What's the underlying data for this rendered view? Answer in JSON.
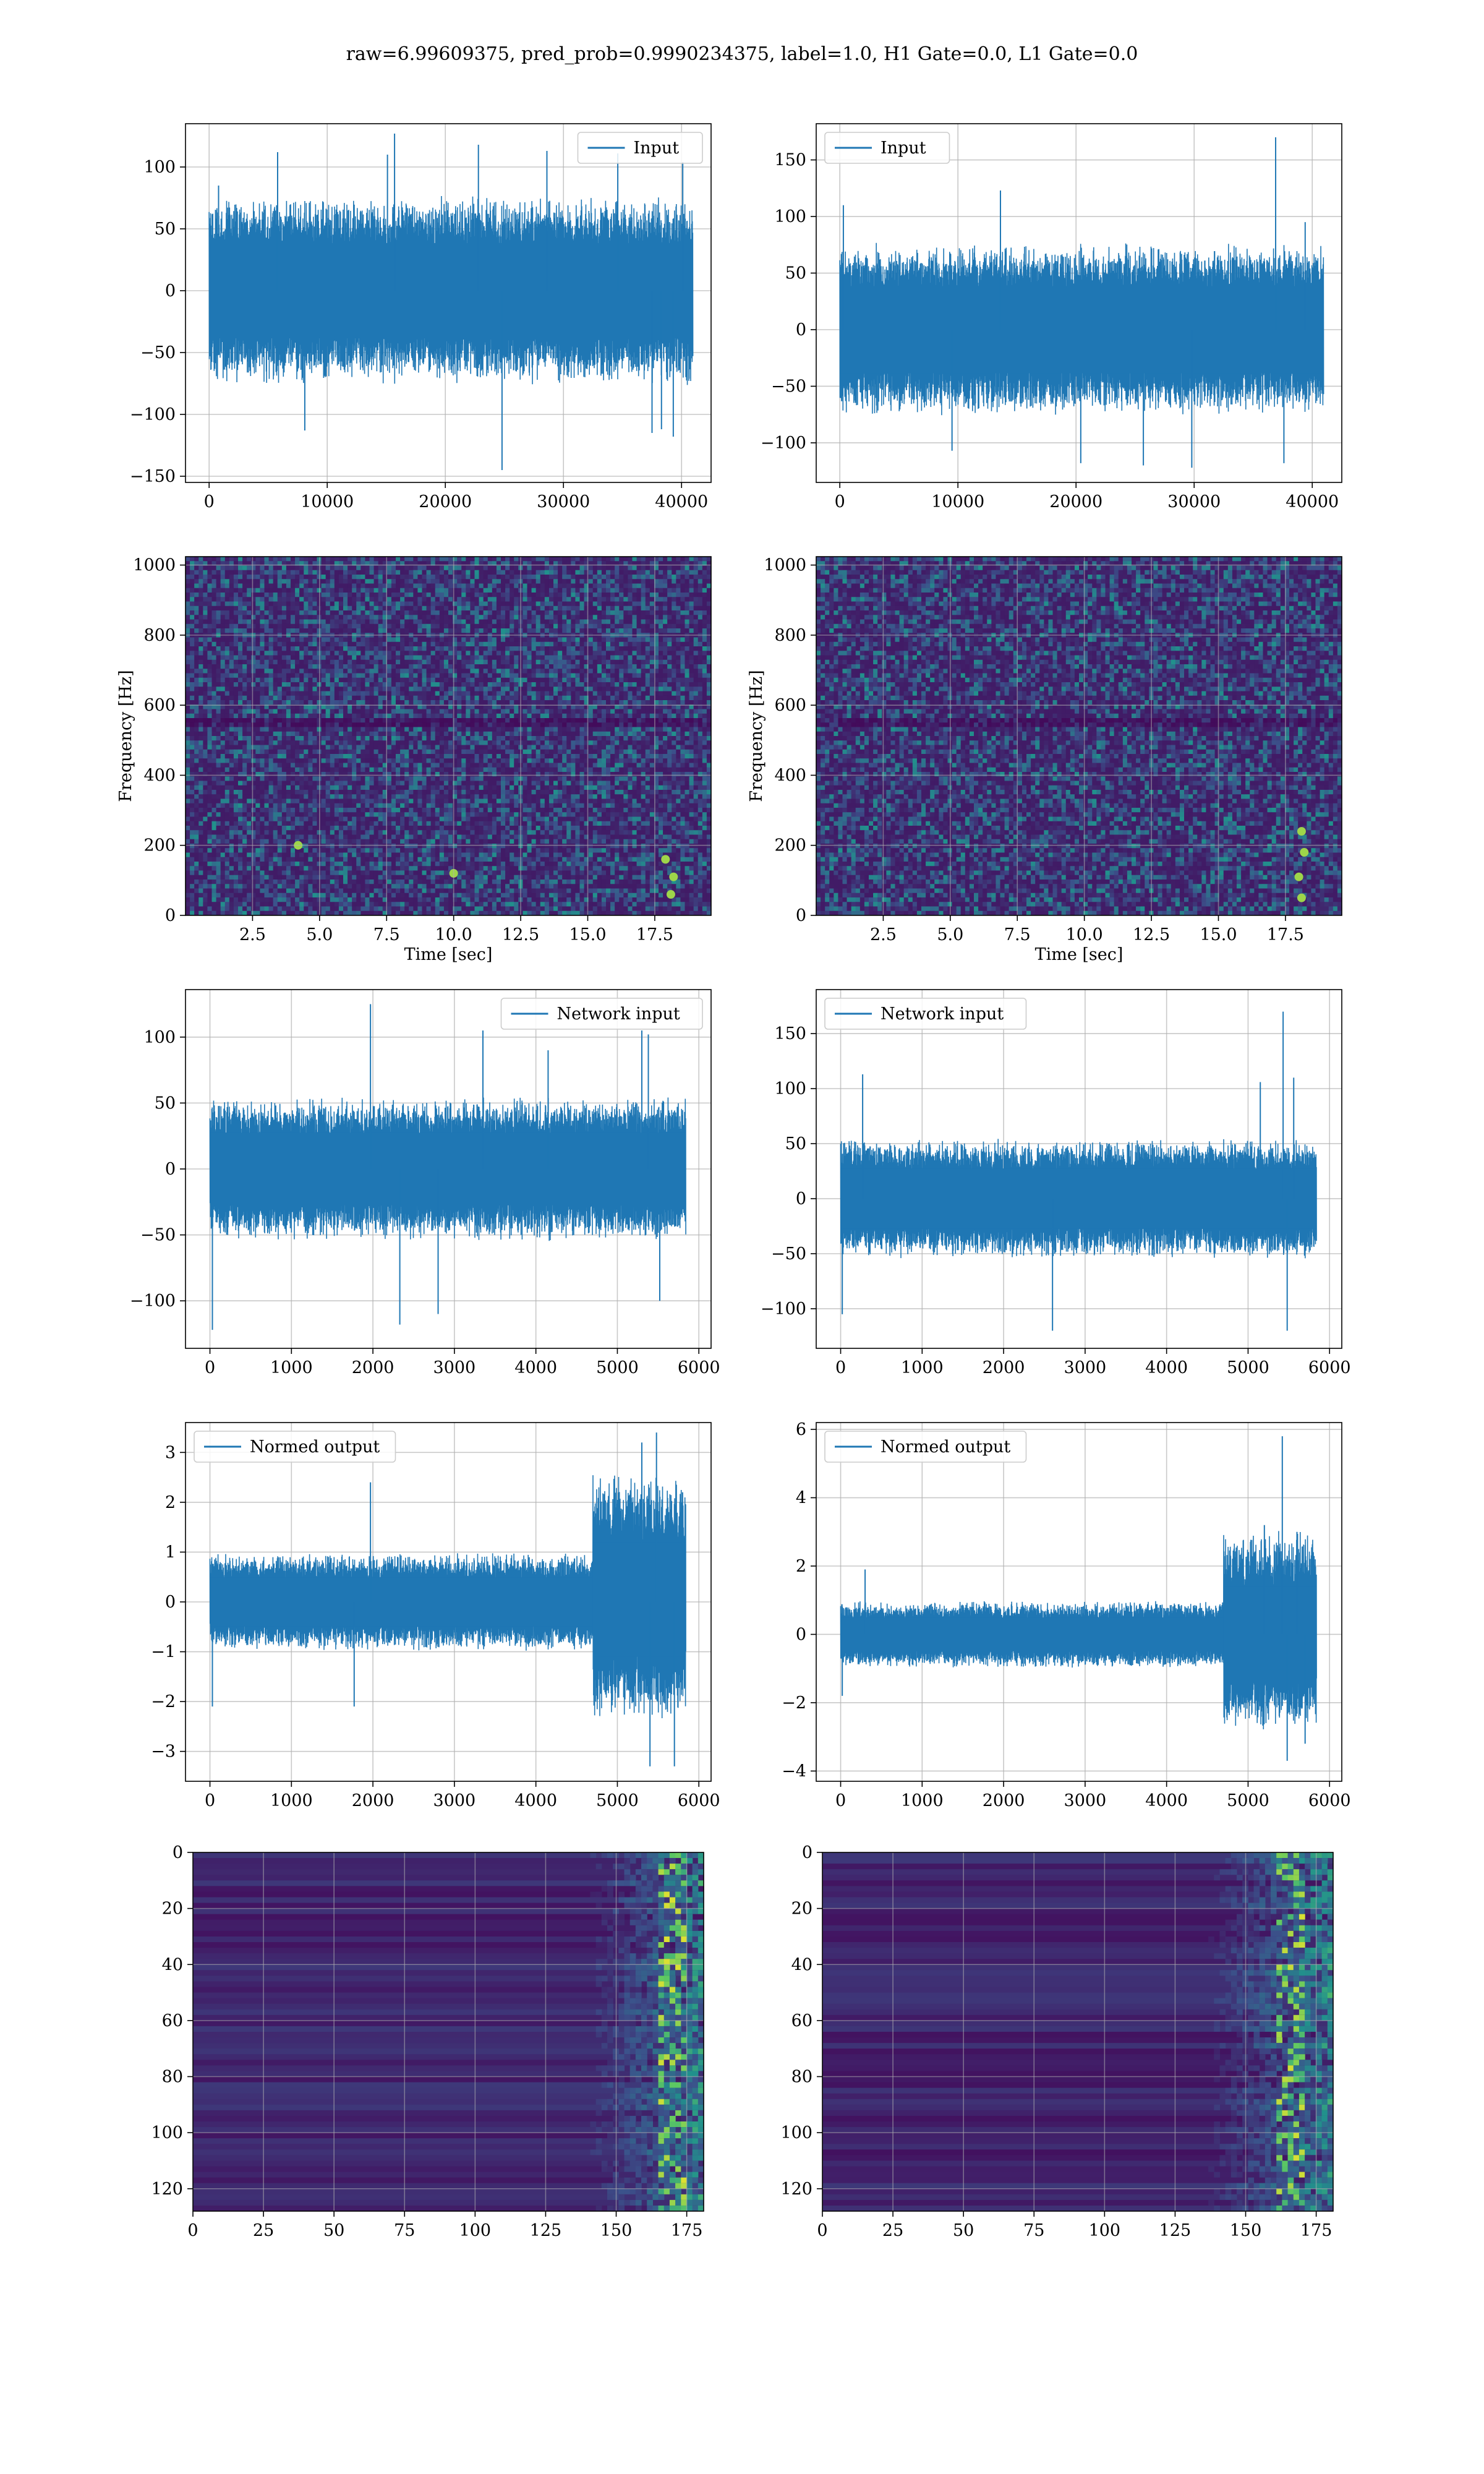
{
  "figure": {
    "title": "raw=6.99609375, pred_prob=0.9990234375, label=1.0, H1 Gate=0.0, L1 Gate=0.0"
  },
  "colors": {
    "series": "#1f77b4",
    "viridis_low": "#440154",
    "grid": "#b0b0b0"
  },
  "chart_data": [
    {
      "id": "r1c1",
      "type": "line",
      "legend": "Input",
      "legend_pos": "top-right",
      "xlim": [
        -2000,
        42500
      ],
      "ylim": [
        -155,
        135
      ],
      "xticks": [
        0,
        10000,
        20000,
        30000,
        40000
      ],
      "yticks": [
        -150,
        -100,
        -50,
        0,
        50,
        100
      ],
      "xticklabels": [
        "0",
        "10000",
        "20000",
        "30000",
        "40000"
      ],
      "yticklabels": [
        "−150",
        "−100",
        "−50",
        "0",
        "50",
        "100"
      ],
      "x_range": [
        0,
        40960
      ],
      "band": [
        -70,
        70
      ],
      "grid": true,
      "spikes": [
        [
          800,
          85
        ],
        [
          5800,
          112
        ],
        [
          8100,
          -113
        ],
        [
          15100,
          110
        ],
        [
          15700,
          127
        ],
        [
          22800,
          118
        ],
        [
          24800,
          -145
        ],
        [
          28600,
          113
        ],
        [
          34600,
          111
        ],
        [
          37500,
          -115
        ],
        [
          38300,
          -112
        ],
        [
          39300,
          -118
        ],
        [
          40100,
          104
        ]
      ]
    },
    {
      "id": "r1c2",
      "type": "line",
      "legend": "Input",
      "legend_pos": "top-left",
      "xlim": [
        -2000,
        42500
      ],
      "ylim": [
        -135,
        182
      ],
      "xticks": [
        0,
        10000,
        20000,
        30000,
        40000
      ],
      "yticks": [
        -100,
        -50,
        0,
        50,
        100,
        150
      ],
      "xticklabels": [
        "0",
        "10000",
        "20000",
        "30000",
        "40000"
      ],
      "yticklabels": [
        "−100",
        "−50",
        "0",
        "50",
        "100",
        "150"
      ],
      "x_range": [
        0,
        40960
      ],
      "band": [
        -70,
        70
      ],
      "grid": true,
      "spikes": [
        [
          300,
          110
        ],
        [
          9500,
          -107
        ],
        [
          13600,
          123
        ],
        [
          20400,
          -118
        ],
        [
          25700,
          -120
        ],
        [
          29800,
          -122
        ],
        [
          36900,
          170
        ],
        [
          37600,
          -118
        ],
        [
          39400,
          95
        ]
      ]
    },
    {
      "id": "r2c1",
      "type": "heatmap",
      "ylabel": "Frequency [Hz]",
      "xlabel": "Time [sec]",
      "xlim": [
        0,
        19.6
      ],
      "ylim": [
        0,
        1024
      ],
      "xticks": [
        2.5,
        5.0,
        7.5,
        10.0,
        12.5,
        15.0,
        17.5
      ],
      "yticks": [
        0,
        200,
        400,
        600,
        800,
        1000
      ],
      "xticklabels": [
        "2.5",
        "5.0",
        "7.5",
        "10.0",
        "12.5",
        "15.0",
        "17.5"
      ],
      "yticklabels": [
        "0",
        "200",
        "400",
        "600",
        "800",
        "1000"
      ],
      "grid": true,
      "bright_spots": [
        [
          18.1,
          60
        ],
        [
          18.2,
          110
        ],
        [
          4.2,
          200
        ],
        [
          10.0,
          120
        ],
        [
          17.9,
          160
        ]
      ]
    },
    {
      "id": "r2c2",
      "type": "heatmap",
      "ylabel": "Frequency [Hz]",
      "xlabel": "Time [sec]",
      "xlim": [
        0,
        19.6
      ],
      "ylim": [
        0,
        1024
      ],
      "xticks": [
        2.5,
        5.0,
        7.5,
        10.0,
        12.5,
        15.0,
        17.5
      ],
      "yticks": [
        0,
        200,
        400,
        600,
        800,
        1000
      ],
      "xticklabels": [
        "2.5",
        "5.0",
        "7.5",
        "10.0",
        "12.5",
        "15.0",
        "17.5"
      ],
      "yticklabels": [
        "0",
        "200",
        "400",
        "600",
        "800",
        "1000"
      ],
      "grid": true,
      "bright_spots": [
        [
          18.1,
          50
        ],
        [
          18.0,
          110
        ],
        [
          18.2,
          180
        ],
        [
          18.1,
          240
        ]
      ]
    },
    {
      "id": "r3c1",
      "type": "line",
      "legend": "Network input",
      "legend_pos": "top-right",
      "xlim": [
        -300,
        6150
      ],
      "ylim": [
        -136,
        136
      ],
      "xticks": [
        0,
        1000,
        2000,
        3000,
        4000,
        5000,
        6000
      ],
      "yticks": [
        -100,
        -50,
        0,
        50,
        100
      ],
      "xticklabels": [
        "0",
        "1000",
        "2000",
        "3000",
        "4000",
        "5000",
        "6000"
      ],
      "yticklabels": [
        "−100",
        "−50",
        "0",
        "50",
        "100"
      ],
      "x_range": [
        0,
        5840
      ],
      "band": [
        -50,
        50
      ],
      "grid": true,
      "spikes": [
        [
          30,
          -122
        ],
        [
          1970,
          125
        ],
        [
          2330,
          -118
        ],
        [
          2800,
          -110
        ],
        [
          3350,
          105
        ],
        [
          4150,
          90
        ],
        [
          5300,
          105
        ],
        [
          5380,
          102
        ],
        [
          5520,
          -100
        ]
      ]
    },
    {
      "id": "r3c2",
      "type": "line",
      "legend": "Network input",
      "legend_pos": "top-left",
      "xlim": [
        -300,
        6150
      ],
      "ylim": [
        -136,
        190
      ],
      "xticks": [
        0,
        1000,
        2000,
        3000,
        4000,
        5000,
        6000
      ],
      "yticks": [
        -100,
        -50,
        0,
        50,
        100,
        150
      ],
      "xticklabels": [
        "0",
        "1000",
        "2000",
        "3000",
        "4000",
        "5000",
        "6000"
      ],
      "yticklabels": [
        "−100",
        "−50",
        "0",
        "50",
        "100",
        "150"
      ],
      "x_range": [
        0,
        5840
      ],
      "band": [
        -50,
        50
      ],
      "grid": true,
      "spikes": [
        [
          20,
          -105
        ],
        [
          270,
          113
        ],
        [
          2600,
          -120
        ],
        [
          5150,
          106
        ],
        [
          5430,
          170
        ],
        [
          5480,
          -120
        ],
        [
          5560,
          110
        ]
      ]
    },
    {
      "id": "r4c1",
      "type": "line",
      "legend": "Normed output",
      "legend_pos": "top-left",
      "xlim": [
        -300,
        6150
      ],
      "ylim": [
        -3.6,
        3.6
      ],
      "xticks": [
        0,
        1000,
        2000,
        3000,
        4000,
        5000,
        6000
      ],
      "yticks": [
        -3,
        -2,
        -1,
        0,
        1,
        2,
        3
      ],
      "xticklabels": [
        "0",
        "1000",
        "2000",
        "3000",
        "4000",
        "5000",
        "6000"
      ],
      "yticklabels": [
        "−3",
        "−2",
        "−1",
        "0",
        "1",
        "2",
        "3"
      ],
      "x_range": [
        0,
        5840
      ],
      "band": [
        -0.9,
        0.9
      ],
      "grid": true,
      "loud_from": 4700,
      "loud_band": [
        -2.2,
        2.4
      ],
      "spikes": [
        [
          30,
          -2.1
        ],
        [
          1770,
          -2.1
        ],
        [
          1970,
          2.4
        ],
        [
          5300,
          3.2
        ],
        [
          5400,
          -3.3
        ],
        [
          5480,
          3.4
        ],
        [
          5700,
          -3.3
        ],
        [
          5800,
          2.2
        ]
      ]
    },
    {
      "id": "r4c2",
      "type": "line",
      "legend": "Normed output",
      "legend_pos": "top-left",
      "xlim": [
        -300,
        6150
      ],
      "ylim": [
        -4.3,
        6.2
      ],
      "xticks": [
        0,
        1000,
        2000,
        3000,
        4000,
        5000,
        6000
      ],
      "yticks": [
        -4,
        -2,
        0,
        2,
        4,
        6
      ],
      "xticklabels": [
        "0",
        "1000",
        "2000",
        "3000",
        "4000",
        "5000",
        "6000"
      ],
      "yticklabels": [
        "−4",
        "−2",
        "0",
        "2",
        "4",
        "6"
      ],
      "x_range": [
        0,
        5840
      ],
      "band": [
        -0.9,
        0.9
      ],
      "grid": true,
      "loud_from": 4700,
      "loud_band": [
        -2.6,
        2.8
      ],
      "spikes": [
        [
          20,
          -1.8
        ],
        [
          300,
          1.9
        ],
        [
          5200,
          3.2
        ],
        [
          5420,
          5.8
        ],
        [
          5480,
          -3.7
        ],
        [
          5600,
          3.0
        ],
        [
          5700,
          -3.2
        ]
      ]
    },
    {
      "id": "r5c1",
      "type": "heatmap",
      "orientation": "inverted-y",
      "xlim": [
        0,
        181
      ],
      "ylim": [
        128,
        0
      ],
      "xticks": [
        0,
        25,
        50,
        75,
        100,
        125,
        150,
        175
      ],
      "yticks": [
        0,
        20,
        40,
        60,
        80,
        100,
        120
      ],
      "xticklabels": [
        "0",
        "25",
        "50",
        "75",
        "100",
        "125",
        "150",
        "175"
      ],
      "yticklabels": [
        "0",
        "20",
        "40",
        "60",
        "80",
        "100",
        "120"
      ],
      "grid": true,
      "active_from": 125,
      "peak_col": 168
    },
    {
      "id": "r5c2",
      "type": "heatmap",
      "orientation": "inverted-y",
      "xlim": [
        0,
        181
      ],
      "ylim": [
        128,
        0
      ],
      "xticks": [
        0,
        25,
        50,
        75,
        100,
        125,
        150,
        175
      ],
      "yticks": [
        0,
        20,
        40,
        60,
        80,
        100,
        120
      ],
      "xticklabels": [
        "0",
        "25",
        "50",
        "75",
        "100",
        "125",
        "150",
        "175"
      ],
      "yticklabels": [
        "0",
        "20",
        "40",
        "60",
        "80",
        "100",
        "120"
      ],
      "grid": true,
      "active_from": 120,
      "peak_col": 165
    }
  ]
}
